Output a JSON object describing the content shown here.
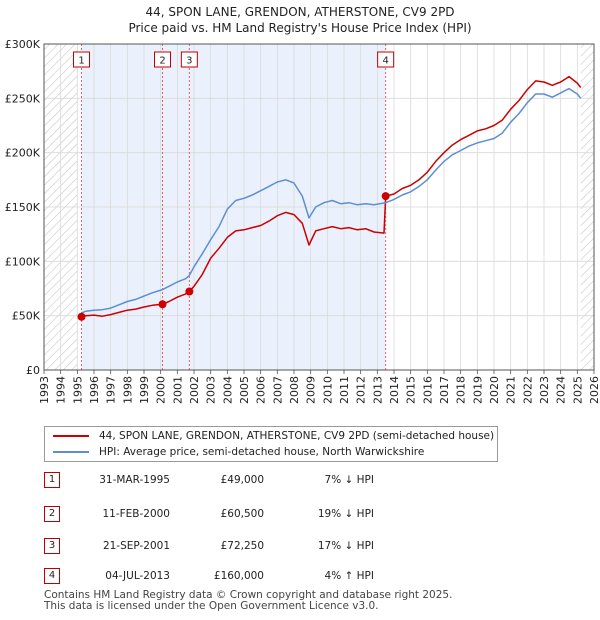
{
  "chart_data": {
    "type": "line",
    "title": "44, SPON LANE, GRENDON, ATHERSTONE, CV9 2PD",
    "subtitle": "Price paid vs. HM Land Registry's House Price Index (HPI)",
    "xlabel": "",
    "ylabel": "",
    "xlim": [
      1993,
      2026
    ],
    "ylim": [
      0,
      300000
    ],
    "y_ticks": [
      {
        "value": 0,
        "label": "£0"
      },
      {
        "value": 50000,
        "label": "£50K"
      },
      {
        "value": 100000,
        "label": "£100K"
      },
      {
        "value": 150000,
        "label": "£150K"
      },
      {
        "value": 200000,
        "label": "£200K"
      },
      {
        "value": 250000,
        "label": "£250K"
      },
      {
        "value": 300000,
        "label": "£300K"
      }
    ],
    "x_ticks": [
      "1993",
      "1994",
      "1995",
      "1996",
      "1997",
      "1998",
      "1999",
      "2000",
      "2001",
      "2002",
      "2003",
      "2004",
      "2005",
      "2006",
      "2007",
      "2008",
      "2009",
      "2010",
      "2011",
      "2012",
      "2013",
      "2014",
      "2015",
      "2016",
      "2017",
      "2018",
      "2019",
      "2020",
      "2021",
      "2022",
      "2023",
      "2024",
      "2025",
      "2026"
    ],
    "grid": true,
    "series": [
      {
        "name": "44, SPON LANE, GRENDON, ATHERSTONE, CV9 2PD (semi-detached house)",
        "color": "#cc0000",
        "points": [
          [
            1995.25,
            49000
          ],
          [
            1995.5,
            50000
          ],
          [
            1996,
            50500
          ],
          [
            1996.5,
            49500
          ],
          [
            1997,
            51000
          ],
          [
            1997.5,
            53000
          ],
          [
            1998,
            55000
          ],
          [
            1998.5,
            56000
          ],
          [
            1999,
            58000
          ],
          [
            1999.5,
            59500
          ],
          [
            2000.11,
            60500
          ],
          [
            2000.5,
            63000
          ],
          [
            2001,
            67000
          ],
          [
            2001.5,
            70000
          ],
          [
            2001.72,
            72250
          ],
          [
            2002,
            77000
          ],
          [
            2002.5,
            88000
          ],
          [
            2003,
            103000
          ],
          [
            2003.5,
            112000
          ],
          [
            2004,
            122000
          ],
          [
            2004.5,
            128000
          ],
          [
            2005,
            129000
          ],
          [
            2005.5,
            131000
          ],
          [
            2006,
            133000
          ],
          [
            2006.5,
            137000
          ],
          [
            2007,
            142000
          ],
          [
            2007.5,
            145000
          ],
          [
            2008,
            143000
          ],
          [
            2008.5,
            135000
          ],
          [
            2008.9,
            115000
          ],
          [
            2009.3,
            128000
          ],
          [
            2009.8,
            130000
          ],
          [
            2010.3,
            132000
          ],
          [
            2010.8,
            130000
          ],
          [
            2011.3,
            131000
          ],
          [
            2011.8,
            129000
          ],
          [
            2012.3,
            130000
          ],
          [
            2012.8,
            127000
          ],
          [
            2013.4,
            126000
          ],
          [
            2013.5,
            160000
          ],
          [
            2014,
            162000
          ],
          [
            2014.5,
            167000
          ],
          [
            2015,
            170000
          ],
          [
            2015.5,
            175000
          ],
          [
            2016,
            182000
          ],
          [
            2016.5,
            192000
          ],
          [
            2017,
            200000
          ],
          [
            2017.5,
            207000
          ],
          [
            2018,
            212000
          ],
          [
            2018.5,
            216000
          ],
          [
            2019,
            220000
          ],
          [
            2019.5,
            222000
          ],
          [
            2020,
            225000
          ],
          [
            2020.5,
            230000
          ],
          [
            2021,
            240000
          ],
          [
            2021.5,
            248000
          ],
          [
            2022,
            258000
          ],
          [
            2022.5,
            266000
          ],
          [
            2023,
            265000
          ],
          [
            2023.5,
            262000
          ],
          [
            2024,
            265000
          ],
          [
            2024.5,
            270000
          ],
          [
            2025,
            264000
          ],
          [
            2025.2,
            260000
          ]
        ]
      },
      {
        "name": "HPI: Average price, semi-detached house, North Warwickshire",
        "color": "#5b8fd0",
        "points": [
          [
            1995.25,
            52500
          ],
          [
            1995.5,
            54000
          ],
          [
            1996,
            55000
          ],
          [
            1996.5,
            55500
          ],
          [
            1997,
            57000
          ],
          [
            1997.5,
            60000
          ],
          [
            1998,
            63000
          ],
          [
            1998.5,
            65000
          ],
          [
            1999,
            68000
          ],
          [
            1999.5,
            71000
          ],
          [
            2000.11,
            74000
          ],
          [
            2000.5,
            77000
          ],
          [
            2001,
            81000
          ],
          [
            2001.5,
            84000
          ],
          [
            2001.72,
            87000
          ],
          [
            2002,
            95000
          ],
          [
            2002.5,
            107000
          ],
          [
            2003,
            120000
          ],
          [
            2003.5,
            132000
          ],
          [
            2004,
            148000
          ],
          [
            2004.5,
            156000
          ],
          [
            2005,
            158000
          ],
          [
            2005.5,
            161000
          ],
          [
            2006,
            165000
          ],
          [
            2006.5,
            169000
          ],
          [
            2007,
            173000
          ],
          [
            2007.5,
            175000
          ],
          [
            2008,
            172000
          ],
          [
            2008.5,
            160000
          ],
          [
            2008.9,
            140000
          ],
          [
            2009.3,
            150000
          ],
          [
            2009.8,
            154000
          ],
          [
            2010.3,
            156000
          ],
          [
            2010.8,
            153000
          ],
          [
            2011.3,
            154000
          ],
          [
            2011.8,
            152000
          ],
          [
            2012.3,
            153000
          ],
          [
            2012.8,
            152000
          ],
          [
            2013.5,
            154000
          ],
          [
            2014,
            157000
          ],
          [
            2014.5,
            161000
          ],
          [
            2015,
            164000
          ],
          [
            2015.5,
            169000
          ],
          [
            2016,
            175000
          ],
          [
            2016.5,
            184000
          ],
          [
            2017,
            192000
          ],
          [
            2017.5,
            198000
          ],
          [
            2018,
            202000
          ],
          [
            2018.5,
            206000
          ],
          [
            2019,
            209000
          ],
          [
            2019.5,
            211000
          ],
          [
            2020,
            213000
          ],
          [
            2020.5,
            218000
          ],
          [
            2021,
            228000
          ],
          [
            2021.5,
            236000
          ],
          [
            2022,
            246000
          ],
          [
            2022.5,
            254000
          ],
          [
            2023,
            254000
          ],
          [
            2023.5,
            251000
          ],
          [
            2024,
            255000
          ],
          [
            2024.5,
            259000
          ],
          [
            2025,
            254000
          ],
          [
            2025.2,
            250000
          ]
        ]
      }
    ],
    "transactions": [
      {
        "num": "1",
        "date": "31-MAR-1995",
        "year": 1995.25,
        "price_value": 49000,
        "price": "£49,000",
        "hpi": "7% ↓ HPI"
      },
      {
        "num": "2",
        "date": "11-FEB-2000",
        "year": 2000.11,
        "price_value": 60500,
        "price": "£60,500",
        "hpi": "19% ↓ HPI"
      },
      {
        "num": "3",
        "date": "21-SEP-2001",
        "year": 2001.72,
        "price_value": 72250,
        "price": "£72,250",
        "hpi": "17% ↓ HPI"
      },
      {
        "num": "4",
        "date": "04-JUL-2013",
        "year": 2013.5,
        "price_value": 160000,
        "price": "£160,000",
        "hpi": "4% ↑ HPI"
      }
    ],
    "hatch_before": 1995,
    "hatch_after": 2025.2
  },
  "footer": {
    "line1": "Contains HM Land Registry data © Crown copyright and database right 2025.",
    "line2": "This data is licensed under the Open Government Licence v3.0."
  }
}
